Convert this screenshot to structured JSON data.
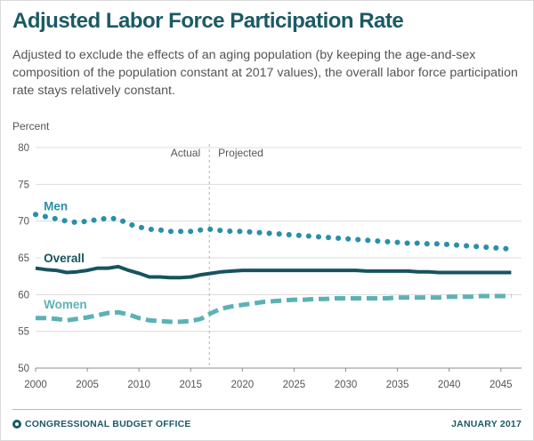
{
  "title": "Adjusted Labor Force Participation Rate",
  "subtitle": "Adjusted to exclude the effects of an aging population (by keeping the age-and-sex composition of the population constant at 2017 values), the overall labor force participation rate stays relatively constant.",
  "footer": {
    "agency": "CONGRESSIONAL BUDGET OFFICE",
    "date": "JANUARY 2017"
  },
  "colors": {
    "men": "#2a8fab",
    "overall": "#17535f",
    "women": "#5bb2b6",
    "title": "#1b5a66"
  },
  "chart_data": {
    "type": "line",
    "ylabel": "Percent",
    "ylim": [
      50,
      80
    ],
    "yticks": [
      50,
      55,
      60,
      65,
      70,
      75,
      80
    ],
    "xlim": [
      2000,
      2047
    ],
    "xticks": [
      2000,
      2005,
      2010,
      2015,
      2020,
      2025,
      2030,
      2035,
      2040,
      2045
    ],
    "divider": {
      "x": 2016.8,
      "left_label": "Actual",
      "right_label": "Projected"
    },
    "x": [
      2000,
      2001,
      2002,
      2003,
      2004,
      2005,
      2006,
      2007,
      2008,
      2009,
      2010,
      2011,
      2012,
      2013,
      2014,
      2015,
      2016,
      2017,
      2018,
      2019,
      2020,
      2021,
      2022,
      2023,
      2024,
      2025,
      2026,
      2027,
      2028,
      2029,
      2030,
      2031,
      2032,
      2033,
      2034,
      2035,
      2036,
      2037,
      2038,
      2039,
      2040,
      2041,
      2042,
      2043,
      2044,
      2045,
      2046
    ],
    "series": [
      {
        "name": "Men",
        "style": "dotted",
        "values": [
          70.9,
          70.6,
          70.3,
          70.0,
          69.8,
          70.0,
          70.2,
          70.4,
          70.3,
          69.6,
          69.2,
          68.9,
          68.8,
          68.6,
          68.6,
          68.6,
          68.8,
          68.9,
          68.7,
          68.6,
          68.6,
          68.5,
          68.4,
          68.3,
          68.2,
          68.1,
          68.0,
          67.9,
          67.8,
          67.7,
          67.6,
          67.5,
          67.4,
          67.3,
          67.2,
          67.1,
          67.0,
          67.0,
          66.9,
          66.9,
          66.8,
          66.7,
          66.6,
          66.5,
          66.4,
          66.3,
          66.2
        ]
      },
      {
        "name": "Overall",
        "style": "solid",
        "values": [
          63.6,
          63.4,
          63.3,
          63.0,
          63.1,
          63.3,
          63.6,
          63.6,
          63.8,
          63.3,
          62.9,
          62.4,
          62.4,
          62.3,
          62.3,
          62.4,
          62.7,
          62.9,
          63.1,
          63.2,
          63.3,
          63.3,
          63.3,
          63.3,
          63.3,
          63.3,
          63.3,
          63.3,
          63.3,
          63.3,
          63.3,
          63.3,
          63.2,
          63.2,
          63.2,
          63.2,
          63.2,
          63.1,
          63.1,
          63.0,
          63.0,
          63.0,
          63.0,
          63.0,
          63.0,
          63.0,
          63.0
        ]
      },
      {
        "name": "Women",
        "style": "dashed",
        "values": [
          56.8,
          56.8,
          56.7,
          56.5,
          56.7,
          56.9,
          57.2,
          57.5,
          57.6,
          57.3,
          56.8,
          56.5,
          56.4,
          56.3,
          56.3,
          56.4,
          56.7,
          57.5,
          58.1,
          58.4,
          58.6,
          58.8,
          59.0,
          59.1,
          59.2,
          59.3,
          59.3,
          59.4,
          59.4,
          59.5,
          59.5,
          59.5,
          59.5,
          59.5,
          59.5,
          59.6,
          59.6,
          59.6,
          59.6,
          59.6,
          59.7,
          59.7,
          59.7,
          59.8,
          59.8,
          59.8,
          59.8
        ]
      }
    ],
    "series_labels": [
      {
        "name": "Men",
        "text": "Men",
        "at_x": 2000.7,
        "at_y": 71.5
      },
      {
        "name": "Overall",
        "text": "Overall",
        "at_x": 2000.7,
        "at_y": 64.4
      },
      {
        "name": "Women",
        "text": "Women",
        "at_x": 2000.7,
        "at_y": 58.1
      }
    ]
  }
}
